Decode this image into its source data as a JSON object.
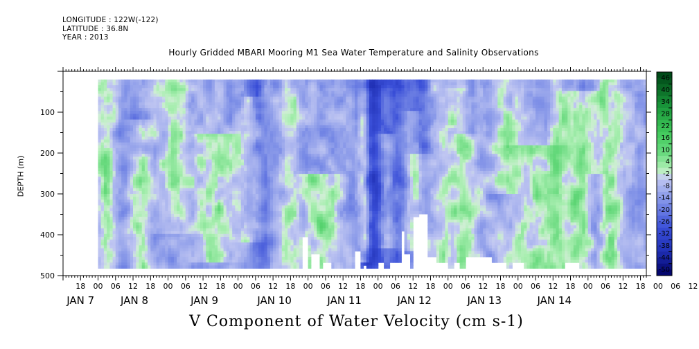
{
  "header": {
    "longitude": "LONGITUDE : 122W(-122)",
    "latitude": "LATITUDE : 36.8N",
    "year": "YEAR : 2013"
  },
  "chart_data": {
    "type": "heatmap",
    "title": "Hourly Gridded MBARI Mooring M1 Sea Water Temperature and Salinity Observations",
    "xlabel": "V Component of Water Velocity (cm s-1)",
    "ylabel": "DEPTH (m)",
    "y_axis": {
      "range": [
        500,
        0
      ],
      "inverted": true,
      "tick_labels": [
        "100",
        "200",
        "300",
        "400",
        "500"
      ],
      "tick_values": [
        100,
        200,
        300,
        400,
        500
      ],
      "data_extent": [
        20,
        485
      ]
    },
    "x_axis": {
      "start": "Jan 6 2013 12:00",
      "end": "Jan 14 2013 20:00",
      "data_start": "Jan 7 2013 00:00",
      "hour_ticks": [
        "18",
        "00",
        "06",
        "12",
        "18",
        "00",
        "06",
        "12",
        "18",
        "00",
        "06",
        "12",
        "18",
        "00",
        "06",
        "12",
        "18",
        "00",
        "06",
        "12",
        "18",
        "00",
        "06",
        "12",
        "18",
        "00",
        "06",
        "12",
        "18",
        "00",
        "06",
        "12",
        "18",
        "00",
        "06",
        "12"
      ],
      "day_labels": [
        "JAN  7",
        "JAN  8",
        "JAN  9",
        "JAN 10",
        "JAN 11",
        "JAN 12",
        "JAN 13",
        "JAN 14"
      ]
    },
    "colorbar": {
      "levels": [
        "46",
        "40",
        "34",
        "28",
        "22",
        "16",
        "10",
        "4",
        "-2",
        "-8",
        "-14",
        "-20",
        "-26",
        "-32",
        "-38",
        "-44",
        "-50"
      ],
      "min": -50,
      "max": 50,
      "step": 3
    },
    "colors": {
      "strong_negative": "#000064",
      "negative": "#3a4fd8",
      "weak_negative": "#9aa8ec",
      "near_zero": "#b4bcef",
      "weak_positive": "#a8eeb0",
      "positive": "#3fc85a",
      "strong_positive": "#004a18"
    },
    "notes": "Velocity field mostly weakly negative (light blue, about -2 to -14 cm/s) with vertical bands of positive flow (green) and a strong negative column near Jan 10 21:00 to Jan 11 06:00; gaps in deep data after Jan 10 06:00."
  }
}
